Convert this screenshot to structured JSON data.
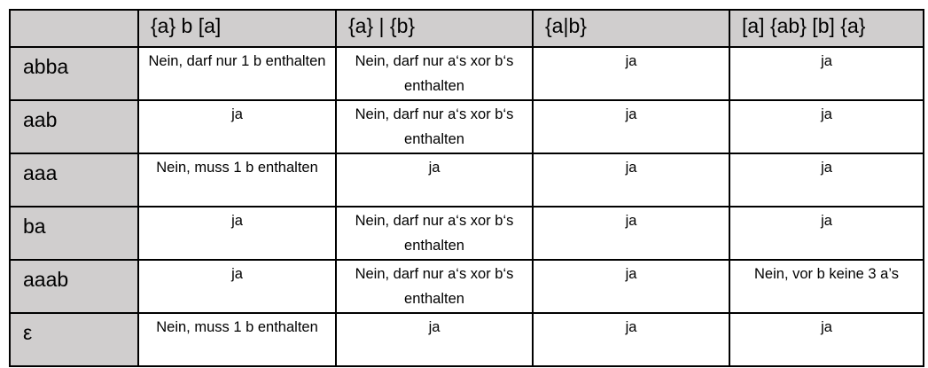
{
  "table": {
    "headers": [
      "",
      "{a} b [a]",
      "{a} | {b}",
      "{a|b}",
      "[a] {ab} [b] {a}"
    ],
    "rows": [
      {
        "label": "abba",
        "cells": [
          "Nein, darf nur 1 b enthalten",
          "Nein, darf nur a‘s xor b‘s enthalten",
          "ja",
          "ja"
        ]
      },
      {
        "label": "aab",
        "cells": [
          "ja",
          "Nein, darf nur a‘s xor b‘s enthalten",
          "ja",
          "ja"
        ]
      },
      {
        "label": "aaa",
        "cells": [
          "Nein, muss 1 b enthalten",
          "ja",
          "ja",
          "ja"
        ]
      },
      {
        "label": "ba",
        "cells": [
          "ja",
          "Nein, darf nur a‘s xor b‘s enthalten",
          "ja",
          "ja"
        ]
      },
      {
        "label": "aaab",
        "cells": [
          "ja",
          "Nein, darf nur a‘s xor b‘s enthalten",
          "ja",
          "Nein, vor b keine 3 a’s"
        ]
      },
      {
        "label": "ε",
        "cells": [
          "Nein, muss 1 b enthalten",
          "ja",
          "ja",
          "ja"
        ]
      }
    ]
  },
  "colors": {
    "header_bg": "#d0cece",
    "border": "#000000"
  }
}
